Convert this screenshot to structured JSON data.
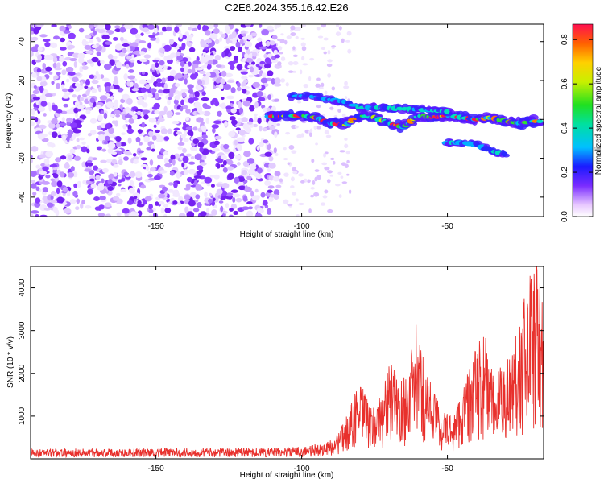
{
  "figure": {
    "title": "C2E6.2024.355.16.42.E26"
  },
  "chart_data": [
    {
      "type": "heatmap",
      "xlabel": "Height of straight line (km)",
      "ylabel": "Frequency (Hz)",
      "xlim": [
        -193,
        -17
      ],
      "ylim": [
        -50,
        49
      ],
      "x_ticks": [
        -150,
        -100,
        -50
      ],
      "y_ticks": [
        -40,
        -20,
        0,
        20,
        40
      ],
      "colorbar": {
        "label": "Normalized spectral amplitude",
        "range": [
          0,
          0.87
        ],
        "ticks": [
          0.0,
          0.2,
          0.4,
          0.6,
          0.8
        ]
      },
      "signal": {
        "main_band": [
          [
            -111,
            1.5
          ],
          [
            -100,
            2
          ],
          [
            -95,
            1
          ],
          [
            -90,
            -2
          ],
          [
            -85,
            -3
          ],
          [
            -80,
            2
          ],
          [
            -75,
            1
          ],
          [
            -70,
            -2
          ],
          [
            -65,
            -4
          ],
          [
            -60,
            2
          ],
          [
            -55,
            1
          ],
          [
            -50,
            2
          ],
          [
            -45,
            1
          ],
          [
            -40,
            0
          ],
          [
            -35,
            1
          ],
          [
            -30,
            -1
          ],
          [
            -25,
            -2
          ],
          [
            -20,
            -1
          ]
        ],
        "upper_band": [
          [
            -103,
            12
          ],
          [
            -98,
            12
          ],
          [
            -85,
            9
          ],
          [
            -80,
            6
          ],
          [
            -72,
            6
          ],
          [
            -60,
            5
          ],
          [
            -50,
            4
          ]
        ],
        "lower_band": [
          [
            -50,
            -12
          ],
          [
            -45,
            -12
          ],
          [
            -40,
            -13
          ],
          [
            -35,
            -16
          ],
          [
            -30,
            -18
          ]
        ]
      }
    },
    {
      "type": "line",
      "xlabel": "Height of straight line (km)",
      "ylabel": "SNR (10 * v/v)",
      "xlim": [
        -193,
        -17
      ],
      "ylim": [
        0,
        4500
      ],
      "x_ticks": [
        -150,
        -100,
        -50
      ],
      "y_ticks": [
        1000,
        2000,
        3000,
        4000
      ],
      "color": "#e8302c",
      "series": [
        {
          "envelope": [
            [
              -193,
              160
            ],
            [
              -180,
              170
            ],
            [
              -160,
              170
            ],
            [
              -140,
              180
            ],
            [
              -120,
              180
            ],
            [
              -105,
              190
            ],
            [
              -98,
              220
            ],
            [
              -92,
              300
            ],
            [
              -88,
              500
            ],
            [
              -85,
              800
            ],
            [
              -82,
              1400
            ],
            [
              -79,
              1500
            ],
            [
              -76,
              1000
            ],
            [
              -73,
              1300
            ],
            [
              -70,
              2000
            ],
            [
              -66,
              1600
            ],
            [
              -63,
              1900
            ],
            [
              -61,
              2800
            ],
            [
              -58,
              2000
            ],
            [
              -55,
              1500
            ],
            [
              -52,
              1000
            ],
            [
              -48,
              900
            ],
            [
              -44,
              1600
            ],
            [
              -40,
              2300
            ],
            [
              -37,
              2600
            ],
            [
              -34,
              1600
            ],
            [
              -31,
              2000
            ],
            [
              -28,
              2300
            ],
            [
              -25,
              3000
            ],
            [
              -22,
              3800
            ],
            [
              -20,
              4300
            ],
            [
              -18,
              3600
            ],
            [
              -17,
              3700
            ]
          ]
        }
      ]
    }
  ]
}
